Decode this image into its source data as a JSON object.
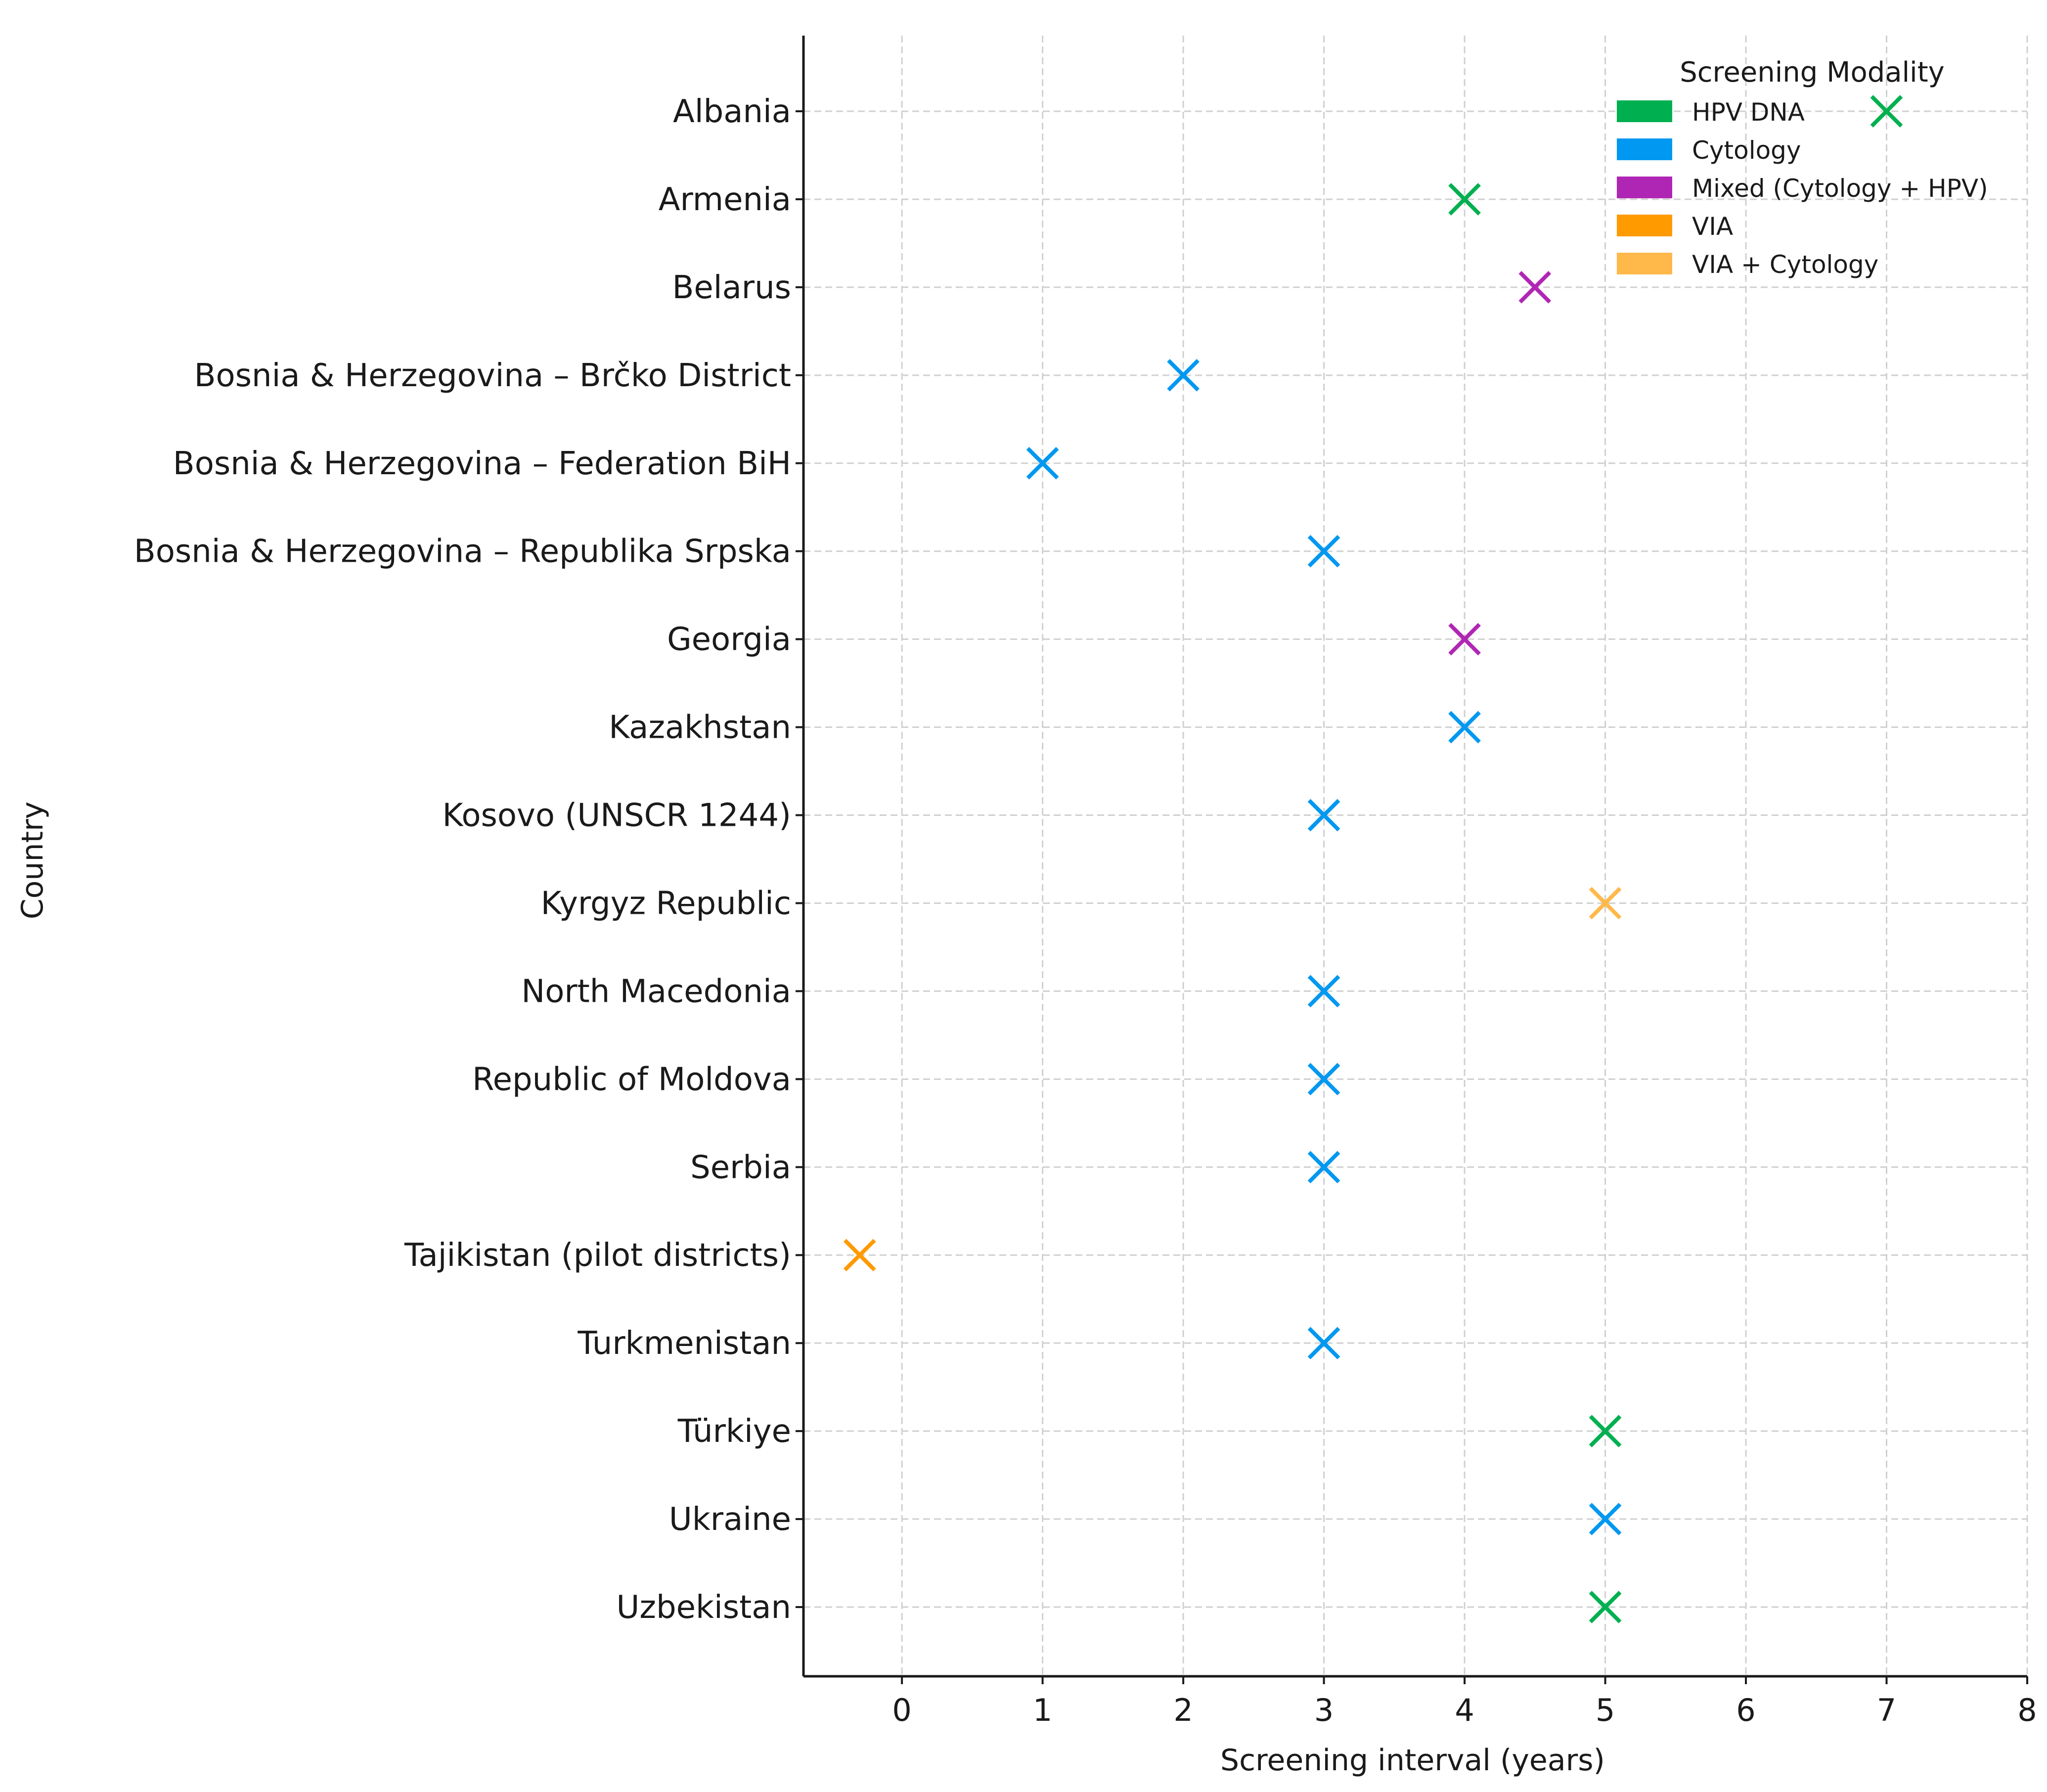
{
  "chart_data": {
    "type": "scatter",
    "title": "",
    "xlabel": "Screening interval (years)",
    "ylabel": "Country",
    "xlim": [
      -0.7,
      8
    ],
    "x_ticks": [
      0,
      1,
      2,
      3,
      4,
      5,
      6,
      7,
      8
    ],
    "grid": true,
    "marker": "x",
    "legend_title": "Screening Modality",
    "legend_position": "top-right",
    "modalities": [
      {
        "name": "HPV DNA",
        "color": "#00b050"
      },
      {
        "name": "Cytology",
        "color": "#0098f0"
      },
      {
        "name": "Mixed (Cytology + HPV)",
        "color": "#b026b4"
      },
      {
        "name": "VIA",
        "color": "#ff9a00"
      },
      {
        "name": "VIA + Cytology",
        "color": "#ffb84a"
      }
    ],
    "categories": [
      "Albania",
      "Armenia",
      "Belarus",
      "Bosnia & Herzegovina – Brčko District",
      "Bosnia & Herzegovina – Federation BiH",
      "Bosnia & Herzegovina – Republika Srpska",
      "Georgia",
      "Kazakhstan",
      "Kosovo (UNSCR 1244)",
      "Kyrgyz Republic",
      "North Macedonia",
      "Republic of Moldova",
      "Serbia",
      "Tajikistan (pilot districts)",
      "Turkmenistan",
      "Türkiye",
      "Ukraine",
      "Uzbekistan"
    ],
    "points": [
      {
        "country": "Albania",
        "x": 7,
        "modality": "HPV DNA"
      },
      {
        "country": "Armenia",
        "x": 4,
        "modality": "HPV DNA"
      },
      {
        "country": "Belarus",
        "x": 4.5,
        "modality": "Mixed (Cytology + HPV)"
      },
      {
        "country": "Bosnia & Herzegovina – Brčko District",
        "x": 2,
        "modality": "Cytology"
      },
      {
        "country": "Bosnia & Herzegovina – Federation BiH",
        "x": 1,
        "modality": "Cytology"
      },
      {
        "country": "Bosnia & Herzegovina – Republika Srpska",
        "x": 3,
        "modality": "Cytology"
      },
      {
        "country": "Georgia",
        "x": 4,
        "modality": "Mixed (Cytology + HPV)"
      },
      {
        "country": "Kazakhstan",
        "x": 4,
        "modality": "Cytology"
      },
      {
        "country": "Kosovo (UNSCR 1244)",
        "x": 3,
        "modality": "Cytology"
      },
      {
        "country": "Kyrgyz Republic",
        "x": 5,
        "modality": "VIA + Cytology"
      },
      {
        "country": "North Macedonia",
        "x": 3,
        "modality": "Cytology"
      },
      {
        "country": "Republic of Moldova",
        "x": 3,
        "modality": "Cytology"
      },
      {
        "country": "Serbia",
        "x": 3,
        "modality": "Cytology"
      },
      {
        "country": "Tajikistan (pilot districts)",
        "x": -0.3,
        "modality": "VIA"
      },
      {
        "country": "Turkmenistan",
        "x": 3,
        "modality": "Cytology"
      },
      {
        "country": "Türkiye",
        "x": 5,
        "modality": "HPV DNA"
      },
      {
        "country": "Ukraine",
        "x": 5,
        "modality": "Cytology"
      },
      {
        "country": "Uzbekistan",
        "x": 5,
        "modality": "HPV DNA"
      }
    ]
  }
}
